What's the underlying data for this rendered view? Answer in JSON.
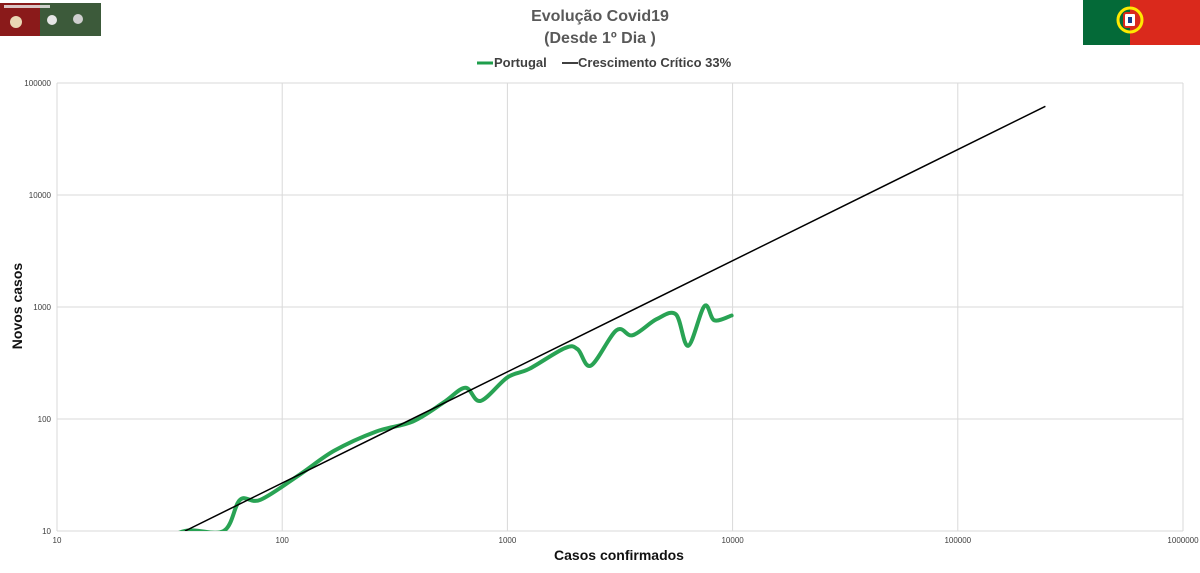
{
  "chart_data": {
    "type": "line",
    "title": "Evolução Covid19",
    "subtitle": "(Desde 1º Dia )",
    "xlabel": "Casos confirmados",
    "ylabel": "Novos casos",
    "x_scale": "log",
    "y_scale": "log",
    "xlim": [
      10,
      1000000
    ],
    "ylim": [
      10,
      100000
    ],
    "x_ticks": [
      "10",
      "100",
      "1000",
      "10000",
      "100000",
      "1000000"
    ],
    "y_ticks": [
      "10",
      "100",
      "1000",
      "10000",
      "100000"
    ],
    "grid": true,
    "legend_position": "top-center",
    "series": [
      {
        "name": "Portugal",
        "color": "#1e9e4b",
        "x": [
          25,
          37,
          55,
          65,
          80,
          120,
          170,
          260,
          380,
          520,
          650,
          760,
          1000,
          1250,
          1800,
          2050,
          2350,
          3050,
          3600,
          4600,
          5600,
          6350,
          7500,
          8300,
          9900
        ],
        "y": [
          7,
          10,
          10,
          19,
          19,
          32,
          52,
          77,
          95,
          140,
          190,
          145,
          235,
          280,
          430,
          420,
          300,
          620,
          560,
          780,
          860,
          450,
          1020,
          760,
          840
        ]
      },
      {
        "name": "Crescimento Crítico 33%",
        "color": "#000000",
        "x": [
          37,
          245000
        ],
        "y": [
          10,
          62000
        ]
      }
    ]
  },
  "badges": {
    "logo_left": "logo-image",
    "flag_right": "portugal-flag",
    "flag_colors": {
      "green": "#046a38",
      "red": "#da291c",
      "yellow": "#ffe900"
    }
  }
}
